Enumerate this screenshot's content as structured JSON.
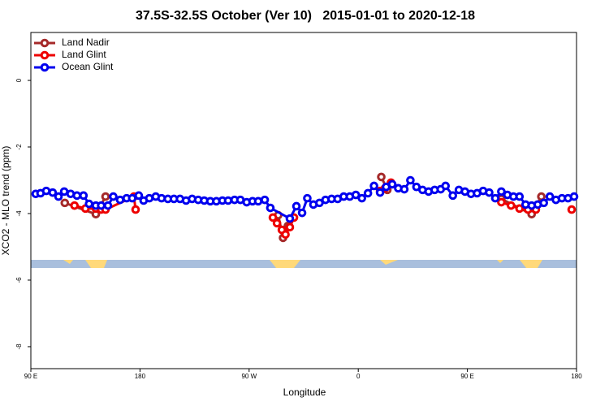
{
  "chart_data": {
    "type": "line",
    "title": "37.5S-32.5S October (Ver 10)   2015-01-01 to 2020-12-18",
    "x_label": "Longitude",
    "y_label": "XCO2 - MLO trend (ppm)",
    "xlim": [
      90,
      540
    ],
    "xticks": [
      {
        "value": 90,
        "label": "90 E"
      },
      180,
      {
        "value": 270,
        "label": "90 W"
      },
      {
        "value": 360,
        "label": "0"
      },
      {
        "value": 450,
        "label": "90 E"
      },
      {
        "value": 540,
        "label": "180"
      }
    ],
    "ylim": [
      -8.66,
      1.44
    ],
    "yticks": [
      0,
      -2,
      -4,
      -6,
      -8
    ],
    "legend": "top-left",
    "series": [
      {
        "name": "Land Nadir",
        "color": "#a52a2a",
        "x": [
          118,
          143.6,
          151.6,
          200,
          294,
          298,
          302,
          340,
          379,
          384,
          440,
          478,
          503,
          511
        ],
        "values": [
          -3.68,
          -4.02,
          -3.49,
          null,
          -4.05,
          -4.73,
          -4.37,
          null,
          -2.9,
          -3.29,
          null,
          -3.56,
          -4.02,
          -3.49
        ]
      },
      {
        "name": "Land Glint",
        "color": "#ee0000",
        "x": [
          126,
          135,
          143.6,
          148,
          151.6,
          175,
          176.4,
          240,
          289.6,
          293,
          297,
          300,
          303.6,
          307,
          340,
          378,
          382,
          387,
          440,
          478,
          486,
          493,
          500,
          506.5,
          520,
          536
        ],
        "values": [
          -3.76,
          -3.85,
          -3.85,
          -3.88,
          -3.88,
          -3.49,
          -3.88,
          null,
          -4.12,
          -4.29,
          -4.49,
          -4.63,
          -4.41,
          -4.12,
          null,
          -3.32,
          -3.24,
          -3.07,
          null,
          -3.66,
          -3.76,
          -3.85,
          -3.88,
          -3.88,
          null,
          -3.88
        ]
      },
      {
        "name": "Ocean Glint",
        "color": "#0000ee",
        "x": [
          94,
          98,
          102.7,
          108,
          112.8,
          117.5,
          122.8,
          128,
          133.4,
          138,
          143.6,
          148,
          153.6,
          158,
          163.6,
          169,
          173.6,
          179,
          183,
          187.7,
          193,
          197.8,
          203,
          208,
          213,
          218,
          223,
          228,
          233,
          238,
          243,
          248,
          252.7,
          258,
          262.8,
          268,
          272.8,
          277.5,
          282.9,
          287.5,
          303.6,
          309,
          313.7,
          318,
          323,
          328,
          333,
          338,
          343,
          348,
          353,
          358,
          363,
          368,
          373,
          378,
          383,
          388,
          393,
          398,
          403,
          408,
          413,
          418,
          423,
          428,
          432,
          438,
          443,
          448,
          453,
          458,
          463,
          468,
          473,
          478,
          483,
          488,
          493,
          498,
          503,
          508,
          513,
          518,
          523,
          528,
          533,
          538
        ],
        "values": [
          -3.41,
          -3.39,
          -3.32,
          -3.37,
          -3.49,
          -3.34,
          -3.41,
          -3.46,
          -3.46,
          -3.71,
          -3.76,
          -3.76,
          -3.76,
          -3.49,
          -3.59,
          -3.54,
          -3.54,
          -3.46,
          -3.61,
          -3.54,
          -3.49,
          -3.54,
          -3.56,
          -3.56,
          -3.56,
          -3.61,
          -3.56,
          -3.59,
          -3.61,
          -3.63,
          -3.63,
          -3.61,
          -3.61,
          -3.59,
          -3.59,
          -3.66,
          -3.63,
          -3.63,
          -3.59,
          -3.83,
          -4.15,
          -3.78,
          -3.98,
          -3.54,
          -3.73,
          -3.68,
          -3.59,
          -3.56,
          -3.56,
          -3.49,
          -3.49,
          -3.44,
          -3.54,
          -3.39,
          -3.17,
          -3.37,
          -3.2,
          -3.12,
          -3.24,
          -3.27,
          -3.0,
          -3.2,
          -3.29,
          -3.34,
          -3.29,
          -3.27,
          -3.17,
          -3.46,
          -3.29,
          -3.34,
          -3.41,
          -3.39,
          -3.32,
          -3.37,
          -3.54,
          -3.34,
          -3.44,
          -3.49,
          -3.49,
          -3.73,
          -3.76,
          -3.73,
          -3.68,
          -3.49,
          -3.59,
          -3.54,
          -3.54,
          -3.49
        ]
      }
    ]
  }
}
